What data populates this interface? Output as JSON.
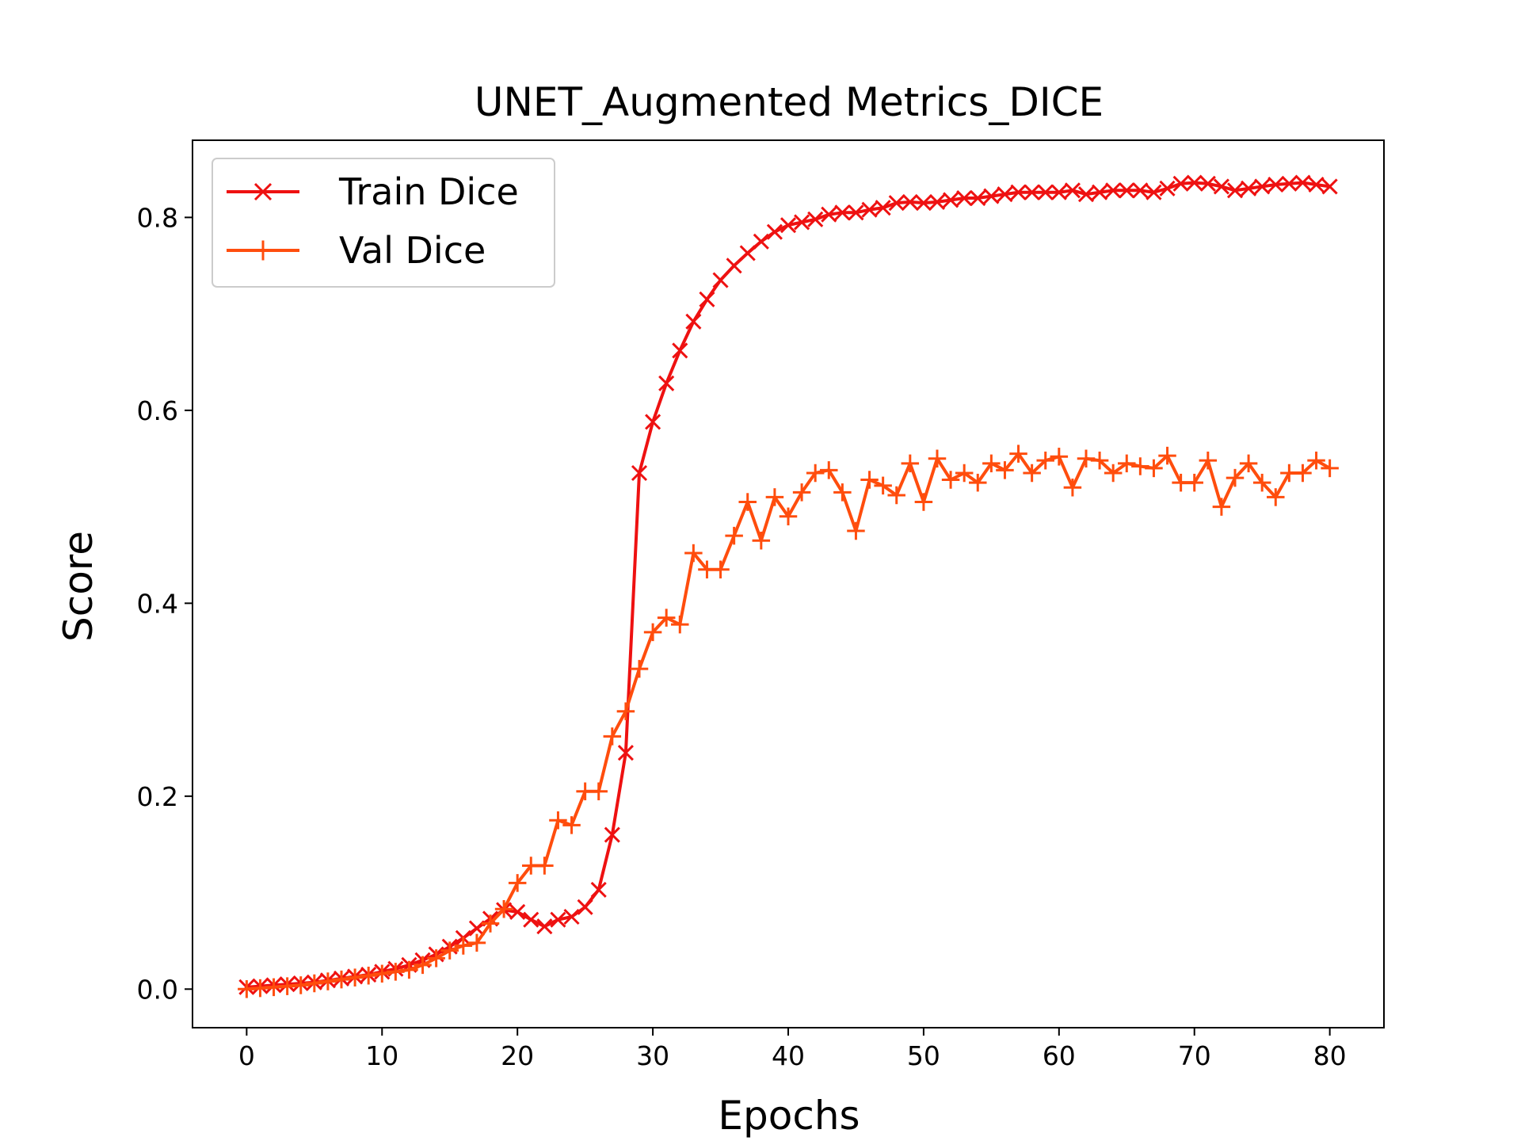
{
  "chart_data": {
    "type": "line",
    "title": "UNET_Augmented Metrics_DICE",
    "xlabel": "Epochs",
    "ylabel": "Score",
    "xlim": [
      -4,
      84
    ],
    "ylim": [
      -0.04,
      0.88
    ],
    "x_ticks": [
      0,
      10,
      20,
      30,
      40,
      50,
      60,
      70,
      80
    ],
    "y_ticks": [
      0.0,
      0.2,
      0.4,
      0.6,
      0.8
    ],
    "x_tick_labels": [
      "0",
      "10",
      "20",
      "30",
      "40",
      "50",
      "60",
      "70",
      "80"
    ],
    "y_tick_labels": [
      "0.0",
      "0.2",
      "0.4",
      "0.6",
      "0.8"
    ],
    "grid": false,
    "legend_position": "top-left",
    "x": [
      0,
      1,
      2,
      3,
      4,
      5,
      6,
      7,
      8,
      9,
      10,
      11,
      12,
      13,
      14,
      15,
      16,
      17,
      18,
      19,
      20,
      21,
      22,
      23,
      24,
      25,
      26,
      27,
      28,
      29,
      30,
      31,
      32,
      33,
      34,
      35,
      36,
      37,
      38,
      39,
      40,
      41,
      42,
      43,
      44,
      45,
      46,
      47,
      48,
      49,
      50,
      51,
      52,
      53,
      54,
      55,
      56,
      57,
      58,
      59,
      60,
      61,
      62,
      63,
      64,
      65,
      66,
      67,
      68,
      69,
      70,
      71,
      72,
      73,
      74,
      75,
      76,
      77,
      78,
      79,
      80
    ],
    "series": [
      {
        "name": "Train Dice",
        "color": "#ee1111",
        "marker": "x",
        "values": [
          0.002,
          0.003,
          0.004,
          0.005,
          0.006,
          0.007,
          0.009,
          0.011,
          0.013,
          0.015,
          0.018,
          0.021,
          0.025,
          0.03,
          0.036,
          0.044,
          0.053,
          0.063,
          0.073,
          0.082,
          0.08,
          0.072,
          0.065,
          0.072,
          0.075,
          0.085,
          0.103,
          0.16,
          0.245,
          0.535,
          0.588,
          0.628,
          0.662,
          0.692,
          0.715,
          0.735,
          0.75,
          0.763,
          0.775,
          0.785,
          0.792,
          0.795,
          0.798,
          0.803,
          0.805,
          0.805,
          0.808,
          0.81,
          0.815,
          0.816,
          0.815,
          0.816,
          0.818,
          0.82,
          0.82,
          0.822,
          0.824,
          0.826,
          0.826,
          0.826,
          0.826,
          0.828,
          0.824,
          0.826,
          0.828,
          0.828,
          0.828,
          0.826,
          0.83,
          0.835,
          0.836,
          0.835,
          0.832,
          0.828,
          0.83,
          0.832,
          0.834,
          0.835,
          0.836,
          0.834,
          0.832
        ]
      },
      {
        "name": "Val Dice",
        "color": "#ff4d0d",
        "marker": "+",
        "values": [
          0.0,
          0.001,
          0.002,
          0.003,
          0.004,
          0.006,
          0.008,
          0.01,
          0.012,
          0.014,
          0.016,
          0.018,
          0.02,
          0.025,
          0.032,
          0.04,
          0.045,
          0.048,
          0.068,
          0.083,
          0.11,
          0.128,
          0.128,
          0.175,
          0.17,
          0.205,
          0.205,
          0.262,
          0.288,
          0.332,
          0.37,
          0.385,
          0.378,
          0.452,
          0.435,
          0.435,
          0.47,
          0.505,
          0.465,
          0.51,
          0.49,
          0.515,
          0.535,
          0.538,
          0.515,
          0.475,
          0.528,
          0.522,
          0.512,
          0.545,
          0.505,
          0.55,
          0.528,
          0.535,
          0.525,
          0.545,
          0.538,
          0.555,
          0.535,
          0.548,
          0.552,
          0.52,
          0.55,
          0.548,
          0.535,
          0.545,
          0.542,
          0.54,
          0.553,
          0.525,
          0.525,
          0.548,
          0.5,
          0.53,
          0.545,
          0.525,
          0.51,
          0.535,
          0.535,
          0.548,
          0.54
        ]
      }
    ]
  }
}
